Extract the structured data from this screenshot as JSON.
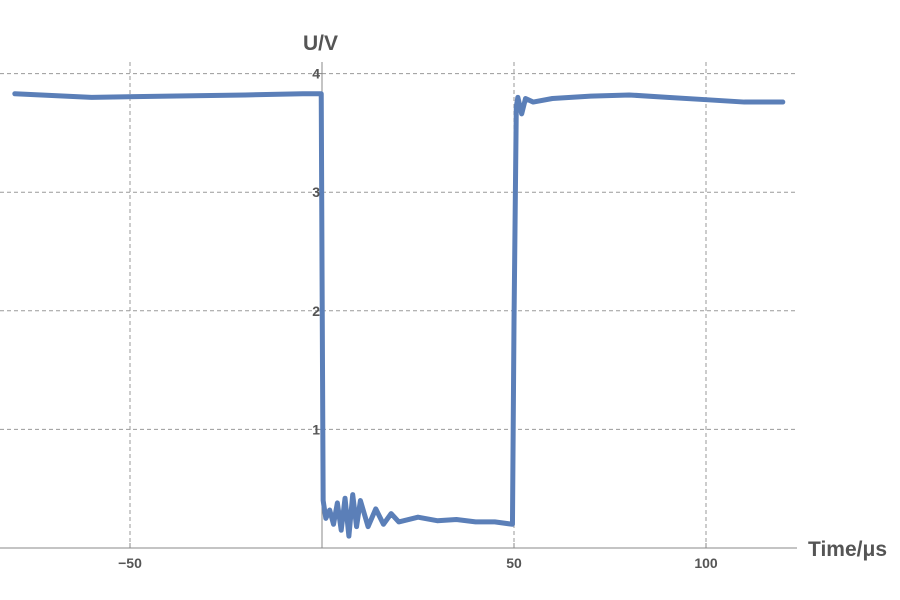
{
  "chart_data": {
    "type": "line",
    "xlabel": "Time/μs",
    "ylabel": "U/V",
    "xlim": [
      -84,
      120
    ],
    "ylim": [
      0,
      4.1
    ],
    "x_ticks": [
      -50,
      50,
      100
    ],
    "y_ticks": [
      1,
      2,
      3,
      4
    ],
    "x_tick_labels": [
      "−50",
      "50",
      "100"
    ],
    "y_tick_labels": [
      "1",
      "2",
      "3",
      "4"
    ],
    "grid": true,
    "legend": "none",
    "series": [
      {
        "color": "#5b7fb8",
        "x": [
          -80,
          -60,
          -40,
          -20,
          -5,
          -0.2,
          0,
          0.3,
          1,
          2,
          3,
          4,
          5,
          6,
          7,
          8,
          9,
          10,
          12,
          14,
          16,
          18,
          20,
          25,
          30,
          35,
          40,
          45,
          49.6,
          50,
          50.6,
          51,
          52,
          53,
          55,
          60,
          70,
          80,
          90,
          100,
          110,
          120
        ],
        "y": [
          3.83,
          3.8,
          3.81,
          3.82,
          3.83,
          3.83,
          2.4,
          0.4,
          0.25,
          0.32,
          0.2,
          0.38,
          0.15,
          0.42,
          0.1,
          0.45,
          0.18,
          0.4,
          0.18,
          0.33,
          0.2,
          0.29,
          0.22,
          0.26,
          0.23,
          0.24,
          0.22,
          0.22,
          0.2,
          1.9,
          3.72,
          3.8,
          3.66,
          3.79,
          3.76,
          3.79,
          3.81,
          3.82,
          3.8,
          3.78,
          3.76,
          3.76
        ]
      }
    ]
  }
}
